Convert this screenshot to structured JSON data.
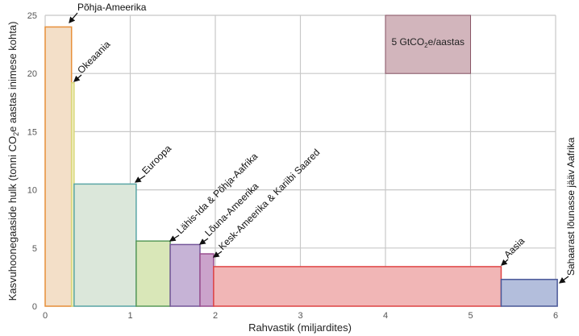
{
  "chart_data": {
    "type": "bar",
    "subtype": "variable-width",
    "xlabel": "Rahvastik (miljardites)",
    "ylabel": "Kasvuhoonegaaside hulk (tonni CO₂e aastas inimese kohta)",
    "ylabel_parts": {
      "pre": "Kasvuhoonegaaside hulk (tonni CO",
      "sub": "2",
      "post": "e aastas inimese kohta)"
    },
    "xlim": [
      0,
      6
    ],
    "ylim": [
      0,
      25
    ],
    "xticks": [
      0,
      1,
      2,
      3,
      4,
      5,
      6
    ],
    "yticks": [
      0,
      5,
      10,
      15,
      20,
      25
    ],
    "grid": true,
    "series": [
      {
        "name": "Põhja-Ameerika",
        "x_start": 0.0,
        "x_end": 0.31,
        "value": 24.0,
        "fill": "#f3dfc8",
        "stroke": "#e8903a"
      },
      {
        "name": "Okeaania",
        "x_start": 0.31,
        "x_end": 0.34,
        "value": 19.2,
        "fill": "#f2f0c4",
        "stroke": "#d8d67a"
      },
      {
        "name": "Euroopa",
        "x_start": 0.34,
        "x_end": 1.07,
        "value": 10.5,
        "fill": "#dbe7da",
        "stroke": "#5aa6a6"
      },
      {
        "name": "Lähis-Ida & Põhja-Aafrika",
        "x_start": 1.07,
        "x_end": 1.47,
        "value": 5.6,
        "fill": "#d9e7b8",
        "stroke": "#5a9a5a"
      },
      {
        "name": "Lõuna-Ameerika",
        "x_start": 1.47,
        "x_end": 1.82,
        "value": 5.3,
        "fill": "#c6b3d6",
        "stroke": "#76589a"
      },
      {
        "name": "Kesk-Ameerika & Kariibi Saared",
        "x_start": 1.82,
        "x_end": 1.98,
        "value": 4.5,
        "fill": "#cba3cb",
        "stroke": "#9a4f8f"
      },
      {
        "name": "Aasia",
        "x_start": 1.98,
        "x_end": 5.36,
        "value": 3.4,
        "fill": "#f1b6b6",
        "stroke": "#e04545"
      },
      {
        "name": "Sahaarast lõunasse jääv Aafrika",
        "x_start": 5.36,
        "x_end": 6.02,
        "value": 2.3,
        "fill": "#b3bedc",
        "stroke": "#4a5898"
      }
    ],
    "legend_box": {
      "x_start": 4,
      "x_end": 5,
      "y_start": 20,
      "y_end": 25,
      "label_pre": "5 GtCO",
      "label_sub": "2",
      "label_post": "e/aastas",
      "fill": "#d2b5bc",
      "stroke": "#8a5566"
    }
  }
}
